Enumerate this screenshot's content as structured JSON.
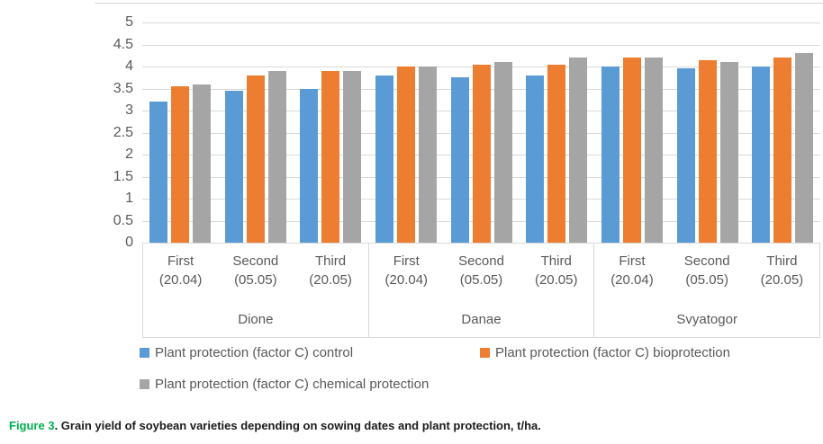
{
  "chart_data": {
    "type": "bar",
    "title": "",
    "grid": true,
    "legend_position": "bottom",
    "y_axis": {
      "min": 0,
      "max": 5,
      "step": 0.5,
      "tick_labels": [
        "5",
        "4.5",
        "4",
        "3.5",
        "3",
        "2.5",
        "2",
        "1.5",
        "1",
        "0.5",
        "0"
      ]
    },
    "x_axis": {
      "groups": [
        {
          "label": "Dione",
          "categories": [
            [
              "First",
              "(20.04)"
            ],
            [
              "Second",
              "(05.05)"
            ],
            [
              "Third",
              "(20.05)"
            ]
          ]
        },
        {
          "label": "Danae",
          "categories": [
            [
              "First",
              "(20.04)"
            ],
            [
              "Second",
              "(05.05)"
            ],
            [
              "Third",
              "(20.05)"
            ]
          ]
        },
        {
          "label": "Svyatogor",
          "categories": [
            [
              "First",
              "(20.04)"
            ],
            [
              "Second",
              "(05.05)"
            ],
            [
              "Third",
              "(20.05)"
            ]
          ]
        }
      ]
    },
    "series": [
      {
        "name": "Plant protection (factor C) control",
        "color": "#5B9BD5",
        "values": [
          3.2,
          3.45,
          3.5,
          3.8,
          3.75,
          3.8,
          4.0,
          3.95,
          4.0
        ]
      },
      {
        "name": "Plant protection (factor C) bioprotection",
        "color": "#ED7D31",
        "values": [
          3.55,
          3.8,
          3.9,
          4.0,
          4.05,
          4.05,
          4.2,
          4.15,
          4.2
        ]
      },
      {
        "name": "Plant protection (factor C) chemical protection",
        "color": "#A5A5A5",
        "values": [
          3.6,
          3.9,
          3.9,
          4.0,
          4.1,
          4.2,
          4.2,
          4.1,
          4.3
        ]
      }
    ]
  },
  "colors": {
    "gridline": "#D9D9D9",
    "axis_text": "#595959",
    "caption_label_color": "#00B050"
  },
  "caption": {
    "label": "Figure 3",
    "text": ". Grain yield of soybean varieties depending on sowing dates and plant protection, t/ha."
  }
}
